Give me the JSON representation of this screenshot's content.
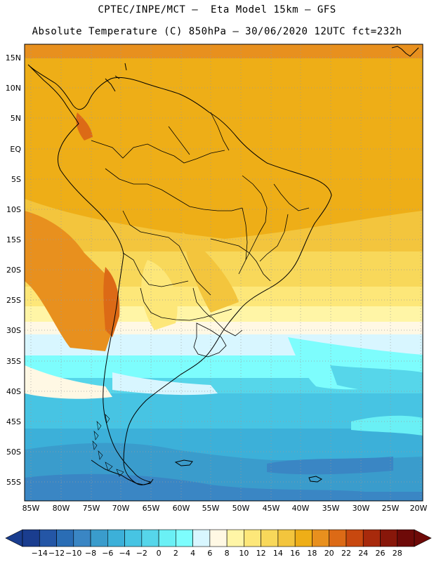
{
  "header": {
    "line1": "CPTEC/INPE/MCT –  Eta Model 15km – GFS",
    "line2": "Absolute Temperature (C) 850hPa – 30/06/2020 12UTC fct=232h"
  },
  "map": {
    "lat_labels": [
      "15N",
      "10N",
      "5N",
      "EQ",
      "5S",
      "10S",
      "15S",
      "20S",
      "25S",
      "30S",
      "35S",
      "40S",
      "45S",
      "50S",
      "55S"
    ],
    "lon_labels": [
      "85W",
      "80W",
      "75W",
      "70W",
      "65W",
      "60W",
      "55W",
      "50W",
      "45W",
      "40W",
      "35W",
      "30W",
      "25W",
      "20W"
    ],
    "extent": {
      "lon_min": -86,
      "lon_max": -20,
      "lat_min": -58,
      "lat_max": 16
    }
  },
  "colorbar": {
    "labels": [
      "-14",
      "-12",
      "-10",
      "-8",
      "-6",
      "-4",
      "-2",
      "0",
      "2",
      "4",
      "6",
      "8",
      "10",
      "12",
      "14",
      "16",
      "18",
      "20",
      "22",
      "24",
      "26",
      "28"
    ],
    "colors": [
      "#1a3d8f",
      "#2456a6",
      "#2a6db5",
      "#3a86c4",
      "#3a9ccc",
      "#3cb0d9",
      "#47c4e3",
      "#56d6ea",
      "#6af0f5",
      "#7dfdfd",
      "#d8f6ff",
      "#fff8e4",
      "#fff5a6",
      "#fde779",
      "#f8d85a",
      "#f3c53d",
      "#eeae17",
      "#e8901e",
      "#dc6a16",
      "#c8480f",
      "#a82a0c",
      "#88170a",
      "#6e0a08"
    ],
    "end_arrow_colors": [
      "#1a3d8f",
      "#6e0a08"
    ]
  }
}
